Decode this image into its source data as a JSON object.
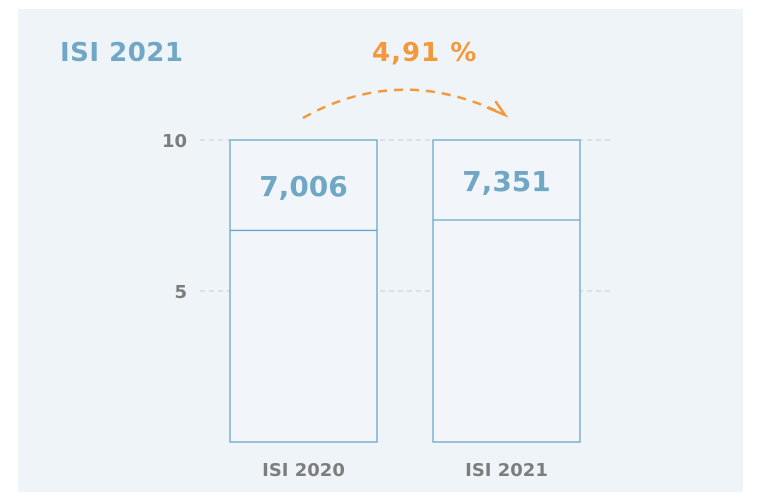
{
  "chart_data": {
    "type": "bar",
    "title": "ISI 2021",
    "categories": [
      "ISI 2020",
      "ISI 2021"
    ],
    "values": [
      7.006,
      7.351
    ],
    "value_labels": [
      "7,006",
      "7,351"
    ],
    "change_label": "4,91 %",
    "yticks": [
      5,
      10
    ],
    "ytick_labels": [
      "5",
      "10"
    ],
    "ylim": [
      0,
      10
    ],
    "xlabel": "",
    "ylabel": "",
    "grid": true,
    "colors": {
      "bar_outline": "#6aa6c9",
      "bar_fill": "#f2f6fa",
      "title": "#6fa7c4",
      "change": "#f3993d",
      "axis_text": "#7d7d7d",
      "grid": "#c8cdd1",
      "background": "#eff4f8"
    }
  }
}
